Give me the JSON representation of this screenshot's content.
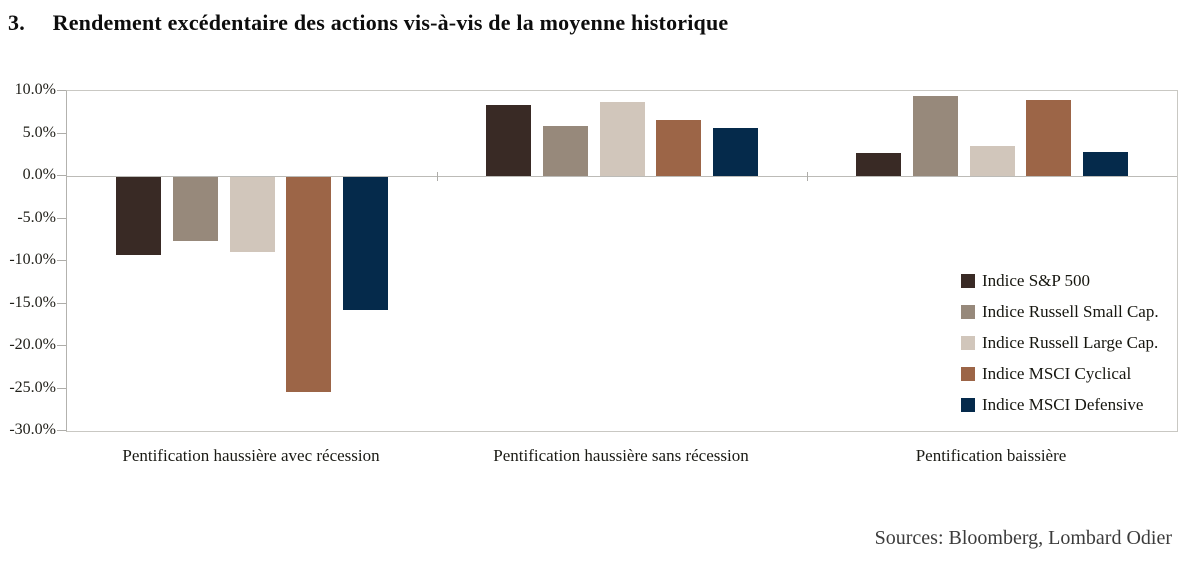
{
  "header": {
    "number": "3.",
    "title": "Rendement excédentaire des actions vis-à-vis de la moyenne historique"
  },
  "source_note": "Sources: Bloomberg, Lombard Odier",
  "chart_data": {
    "type": "bar",
    "title": "Rendement excédentaire des actions vis-à-vis de la moyenne historique",
    "categories": [
      "Pentification haussière avec récession",
      "Pentification haussière sans récession",
      "Pentification baissière"
    ],
    "series": [
      {
        "name": "Indice S&P 500",
        "color": "#392a25",
        "values": [
          -9.2,
          8.3,
          2.7
        ]
      },
      {
        "name": "Indice Russell Small Cap.",
        "color": "#97897b",
        "values": [
          -7.5,
          5.9,
          9.4
        ]
      },
      {
        "name": "Indice Russell Large Cap.",
        "color": "#d1c6bb",
        "values": [
          -8.8,
          8.7,
          3.5
        ]
      },
      {
        "name": "Indice MSCI Cyclical",
        "color": "#9c6547",
        "values": [
          -25.3,
          6.6,
          8.9
        ]
      },
      {
        "name": "Indice MSCI Defensive",
        "color": "#052a4b",
        "values": [
          -15.6,
          5.7,
          2.8
        ]
      }
    ],
    "xlabel": "",
    "ylabel": "",
    "ylim": [
      -30,
      10
    ],
    "ytick_step": 5,
    "ytick_labels": [
      "10.0%",
      "5.0%",
      "0.0%",
      "-5.0%",
      "-10.0%",
      "-15.0%",
      "-20.0%",
      "-25.0%",
      "-30.0%"
    ],
    "grid": false,
    "legend_position": "inside-right"
  }
}
